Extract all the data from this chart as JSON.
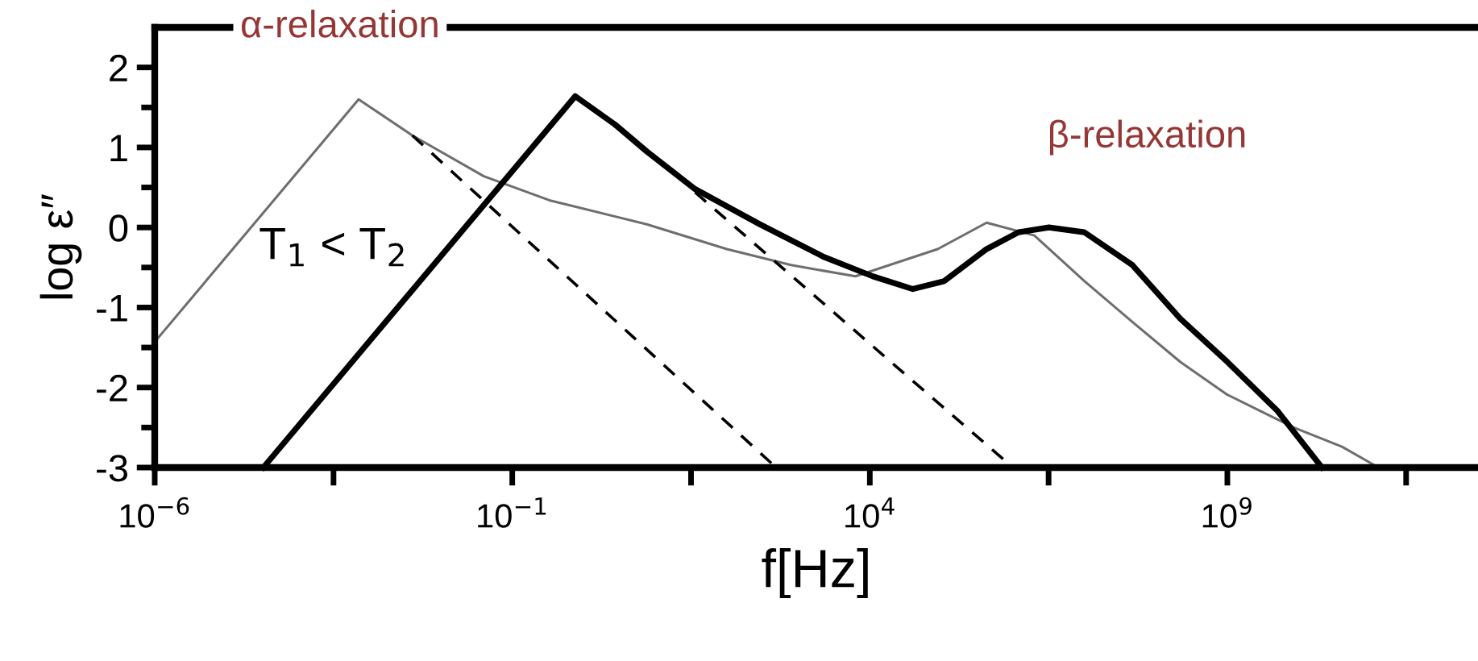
{
  "chart_data": {
    "type": "line",
    "xlabel": "f[Hz]",
    "ylabel": "log ε″",
    "log": "x",
    "xlim": [
      1e-06,
      3200000000000
    ],
    "xticks": [
      {
        "value": 1e-06,
        "label": "10$^{−6}$"
      },
      {
        "value": 0.000316227766,
        "label": null
      },
      {
        "value": 0.1,
        "label": "10$^{−1}$"
      },
      {
        "value": 31.6227766,
        "label": null
      },
      {
        "value": 10000,
        "label": "10$^{4}$"
      },
      {
        "value": 3162277.66,
        "label": null
      },
      {
        "value": 1000000000,
        "label": "10$^{9}$"
      },
      {
        "value": 316227766017,
        "label": null
      }
    ],
    "ylim": [
      -3,
      2.5
    ],
    "yticks": [
      {
        "value": -3,
        "label": "-3"
      },
      {
        "value": -2.5,
        "label": null
      },
      {
        "value": -2,
        "label": "-2"
      },
      {
        "value": -1.5,
        "label": null
      },
      {
        "value": -1,
        "label": "-1"
      },
      {
        "value": -0.5,
        "label": null
      },
      0,
      {
        "value": 0.5,
        "label": null
      },
      1,
      {
        "value": 1.5,
        "label": null
      },
      2
    ],
    "grid": false,
    "legend": false,
    "series": [
      {
        "color": "#6e6e6e",
        "line_style": "solid",
        "x": [
          1e-06,
          0.00071,
          0.004,
          0.04,
          0.33,
          7.6,
          100,
          790,
          6300,
          89000,
          430000,
          2000000,
          10000000,
          47000000,
          220000000,
          1000000000,
          8500000000,
          40000000000,
          130000000000
        ],
        "values": [
          -1.43,
          1.6,
          1.15,
          0.64,
          0.34,
          0.04,
          -0.27,
          -0.47,
          -0.61,
          -0.27,
          0.06,
          -0.1,
          -0.67,
          -1.18,
          -1.68,
          -2.09,
          -2.5,
          -2.74,
          -3
        ]
      },
      {
        "color": "#000000",
        "line_style": "solid",
        "x": [
          3.3e-05,
          0.76,
          2.7,
          7.6,
          36,
          290,
          2300,
          11000,
          40000,
          110000,
          430000,
          1200000,
          3200000,
          10000000,
          47000000,
          220000000,
          1000000000,
          5000000000,
          21000000000
        ],
        "values": [
          -3,
          1.64,
          1.29,
          0.95,
          0.48,
          0.04,
          -0.37,
          -0.61,
          -0.77,
          -0.67,
          -0.27,
          -0.06,
          0.0,
          -0.06,
          -0.47,
          -1.14,
          -1.68,
          -2.29,
          -3
        ]
      },
      {
        "color": "#000000",
        "line_style": "dashed",
        "x": [
          0.004,
          490
        ],
        "values": [
          1.15,
          -3
        ]
      },
      {
        "color": "#000000",
        "line_style": "dashed",
        "x": [
          36,
          1000000
        ],
        "values": [
          0.44,
          -3
        ]
      }
    ],
    "annotations": [
      "α-relaxation",
      "β-relaxation",
      "T$_{1}$ < T$_{2}$"
    ]
  }
}
